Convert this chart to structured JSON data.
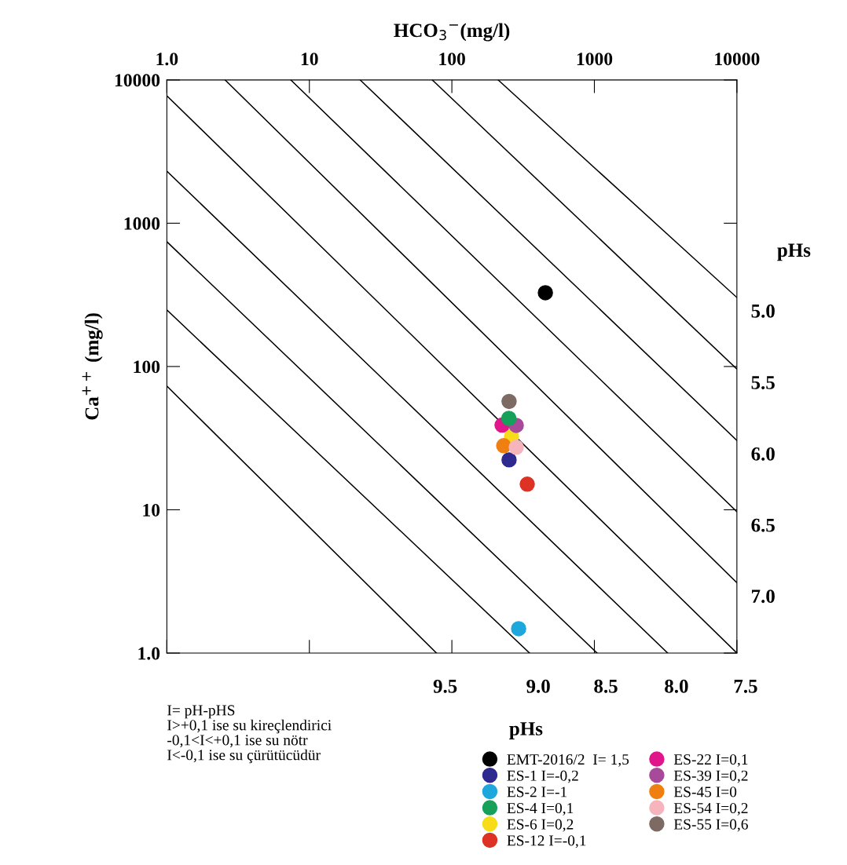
{
  "chart_data": {
    "type": "scatter",
    "xlabel": "HCO$_{3}$$^{−}$(mg/l)",
    "ylabel": "Ca$^{++}$ (mg/l)",
    "log": "xy",
    "xlim": [
      1,
      10000
    ],
    "ylim": [
      1,
      10000
    ],
    "xticks": [
      {
        "value": 1,
        "label": "1.0"
      },
      10,
      100,
      1000,
      10000
    ],
    "yticks": [
      {
        "value": 1,
        "label": "1.0"
      },
      10,
      100,
      1000,
      10000
    ],
    "marker": "circle",
    "grid": false,
    "legend": "bottom",
    "series": [
      {
        "name": "EMT-2016/2  I= 1,5",
        "color": "#000000",
        "x": [
          453
        ],
        "values": [
          327
        ]
      },
      {
        "name": "ES-1 I=-0,2",
        "color": "#2e2a8f",
        "x": [
          252
        ],
        "values": [
          22.3
        ]
      },
      {
        "name": "ES-2 I=-1",
        "color": "#1ea7dc",
        "x": [
          294
        ],
        "values": [
          1.48
        ]
      },
      {
        "name": "ES-4 I=0,1",
        "color": "#16a05a",
        "x": [
          251
        ],
        "values": [
          43.5
        ]
      },
      {
        "name": "ES-6 I=0,2",
        "color": "#f7dc1a",
        "x": [
          262
        ],
        "values": [
          32.5
        ]
      },
      {
        "name": "ES-12 I=-0,1",
        "color": "#dd3224",
        "x": [
          338
        ],
        "values": [
          15.1
        ]
      },
      {
        "name": "ES-22 I=0,1",
        "color": "#e0168a",
        "x": [
          225
        ],
        "values": [
          39
        ]
      },
      {
        "name": "ES-39 I=0,2",
        "color": "#a84a9a",
        "x": [
          283
        ],
        "values": [
          38.8
        ]
      },
      {
        "name": "ES-45 I=0",
        "color": "#f07f12",
        "x": [
          231
        ],
        "values": [
          28
        ]
      },
      {
        "name": "ES-54 I=0,2",
        "color": "#f6b5bd",
        "x": [
          283
        ],
        "values": [
          27.3
        ]
      },
      {
        "name": "ES-55 I=0,6",
        "color": "#7d6b63",
        "x": [
          252
        ],
        "values": [
          57
        ]
      },
      {
        "type": "line",
        "marker": "none",
        "name": "9.5",
        "color": "#000000",
        "x": [
          1,
          78
        ],
        "values": [
          73,
          1
        ]
      },
      {
        "type": "line",
        "marker": "none",
        "name": "9.0",
        "color": "#000000",
        "x": [
          1,
          351
        ],
        "values": [
          248,
          1
        ]
      },
      {
        "type": "line",
        "marker": "none",
        "name": "8.5",
        "color": "#000000",
        "x": [
          1,
          1045
        ],
        "values": [
          743,
          1
        ]
      },
      {
        "type": "line",
        "marker": "none",
        "name": "8.0",
        "color": "#000000",
        "x": [
          1,
          3270
        ],
        "values": [
          2310,
          1
        ]
      },
      {
        "type": "line",
        "marker": "none",
        "name": "7.5",
        "color": "#000000",
        "x": [
          1,
          10000
        ],
        "values": [
          7760,
          1
        ]
      },
      {
        "type": "line",
        "marker": "none",
        "name": "7.0",
        "color": "#000000",
        "x": [
          2.56,
          10000
        ],
        "values": [
          10000,
          3.1
        ]
      },
      {
        "type": "line",
        "marker": "none",
        "name": "6.5",
        "color": "#000000",
        "x": [
          7.4,
          10000
        ],
        "values": [
          10000,
          9.7
        ]
      },
      {
        "type": "line",
        "marker": "none",
        "name": "6.0",
        "color": "#000000",
        "x": [
          22.7,
          10000
        ],
        "values": [
          10000,
          30.5
        ]
      },
      {
        "type": "line",
        "marker": "none",
        "name": "5.5",
        "color": "#000000",
        "x": [
          72.8,
          10000
        ],
        "values": [
          10000,
          96
        ]
      },
      {
        "type": "line",
        "marker": "none",
        "name": "5.0",
        "color": "#000000",
        "x": [
          211,
          10000
        ],
        "values": [
          10000,
          303
        ]
      }
    ],
    "annotations": [
      "I= pH-pHS\nI>+0,1 ise su kireçlendirici\n-0,1<I<+0,1 ise su nötr\nI<-0,1 ise su çürütücüdür",
      "pHs",
      "pHs"
    ]
  }
}
